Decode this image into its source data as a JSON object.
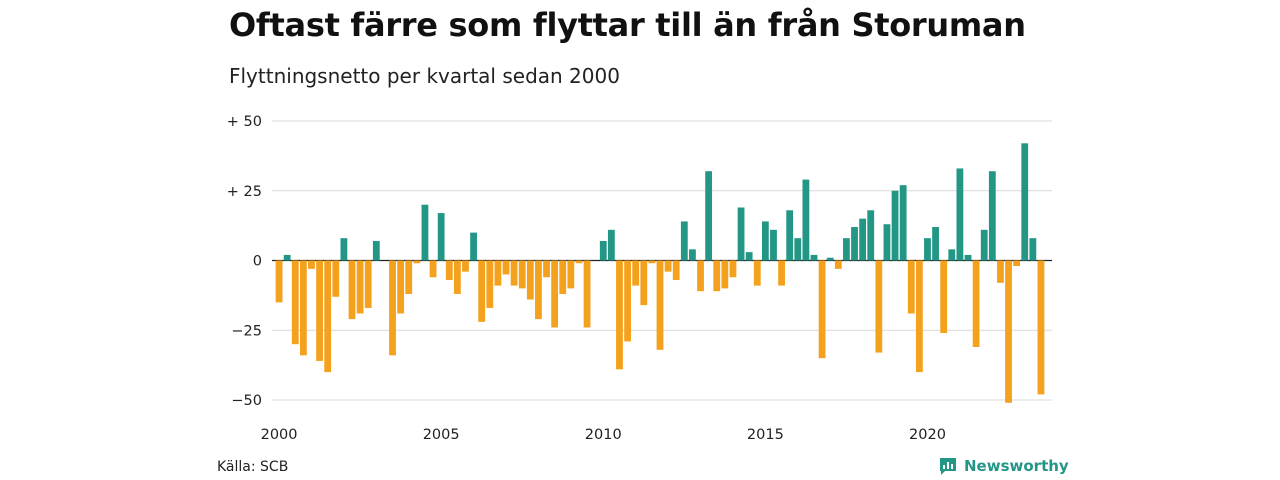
{
  "title": "Oftast färre som flyttar till än från Storuman",
  "subtitle": "Flyttningsnetto per kvartal sedan 2000",
  "source": "Källa: SCB",
  "brand": "Newsworthy",
  "colors": {
    "positive": "#239685",
    "negative": "#F4A21E",
    "grid": "#d9d9d9",
    "brand": "#239685"
  },
  "chart_data": {
    "type": "bar",
    "title": "Oftast färre som flyttar till än från Storuman",
    "subtitle": "Flyttningsnetto per kvartal sedan 2000",
    "xlabel": "",
    "ylabel": "",
    "ylim": [
      -50,
      50
    ],
    "xlim": [
      2000,
      2023.75
    ],
    "x_ticks": [
      {
        "value": 2000,
        "label": "2000"
      },
      {
        "value": 2005,
        "label": "2005"
      },
      {
        "value": 2010,
        "label": "2010"
      },
      {
        "value": 2015,
        "label": "2015"
      },
      {
        "value": 2020,
        "label": "2020"
      }
    ],
    "y_ticks": [
      {
        "value": 50,
        "label": "+ 50"
      },
      {
        "value": 25,
        "label": "+ 25"
      },
      {
        "value": 0,
        "label": "0"
      },
      {
        "value": -25,
        "label": "−25"
      },
      {
        "value": -50,
        "label": "−50"
      }
    ],
    "grid": true,
    "start_year": 2000,
    "quarters_per_year": 4,
    "values": [
      -15,
      2,
      -30,
      -34,
      -3,
      -36,
      -40,
      -13,
      8,
      -21,
      -19,
      -17,
      7,
      0,
      -34,
      -19,
      -12,
      -1,
      20,
      -6,
      17,
      -7,
      -12,
      -4,
      10,
      -22,
      -17,
      -9,
      -5,
      -9,
      -10,
      -14,
      -21,
      -6,
      -24,
      -12,
      -10,
      -1,
      -24,
      0,
      7,
      11,
      -39,
      -29,
      -9,
      -16,
      -1,
      -32,
      -4,
      -7,
      14,
      4,
      -11,
      32,
      -11,
      -10,
      -6,
      19,
      3,
      -9,
      14,
      11,
      -9,
      18,
      8,
      29,
      2,
      -35,
      1,
      -3,
      8,
      12,
      15,
      18,
      -33,
      13,
      25,
      27,
      -19,
      -40,
      8,
      12,
      -26,
      4,
      33,
      2,
      -31,
      11,
      32,
      -8,
      -51,
      -2,
      42,
      8,
      -48
    ]
  }
}
